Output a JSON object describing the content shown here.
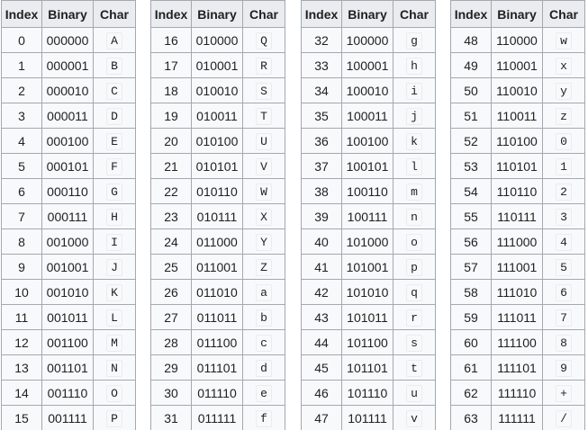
{
  "tables": [
    {
      "header": [
        "Index",
        "Binary",
        "Char"
      ],
      "rows": [
        [
          0,
          "000000",
          "A"
        ],
        [
          1,
          "000001",
          "B"
        ],
        [
          2,
          "000010",
          "C"
        ],
        [
          3,
          "000011",
          "D"
        ],
        [
          4,
          "000100",
          "E"
        ],
        [
          5,
          "000101",
          "F"
        ],
        [
          6,
          "000110",
          "G"
        ],
        [
          7,
          "000111",
          "H"
        ],
        [
          8,
          "001000",
          "I"
        ],
        [
          9,
          "001001",
          "J"
        ],
        [
          10,
          "001010",
          "K"
        ],
        [
          11,
          "001011",
          "L"
        ],
        [
          12,
          "001100",
          "M"
        ],
        [
          13,
          "001101",
          "N"
        ],
        [
          14,
          "001110",
          "O"
        ],
        [
          15,
          "001111",
          "P"
        ]
      ]
    },
    {
      "header": [
        "Index",
        "Binary",
        "Char"
      ],
      "rows": [
        [
          16,
          "010000",
          "Q"
        ],
        [
          17,
          "010001",
          "R"
        ],
        [
          18,
          "010010",
          "S"
        ],
        [
          19,
          "010011",
          "T"
        ],
        [
          20,
          "010100",
          "U"
        ],
        [
          21,
          "010101",
          "V"
        ],
        [
          22,
          "010110",
          "W"
        ],
        [
          23,
          "010111",
          "X"
        ],
        [
          24,
          "011000",
          "Y"
        ],
        [
          25,
          "011001",
          "Z"
        ],
        [
          26,
          "011010",
          "a"
        ],
        [
          27,
          "011011",
          "b"
        ],
        [
          28,
          "011100",
          "c"
        ],
        [
          29,
          "011101",
          "d"
        ],
        [
          30,
          "011110",
          "e"
        ],
        [
          31,
          "011111",
          "f"
        ]
      ]
    },
    {
      "header": [
        "Index",
        "Binary",
        "Char"
      ],
      "rows": [
        [
          32,
          "100000",
          "g"
        ],
        [
          33,
          "100001",
          "h"
        ],
        [
          34,
          "100010",
          "i"
        ],
        [
          35,
          "100011",
          "j"
        ],
        [
          36,
          "100100",
          "k"
        ],
        [
          37,
          "100101",
          "l"
        ],
        [
          38,
          "100110",
          "m"
        ],
        [
          39,
          "100111",
          "n"
        ],
        [
          40,
          "101000",
          "o"
        ],
        [
          41,
          "101001",
          "p"
        ],
        [
          42,
          "101010",
          "q"
        ],
        [
          43,
          "101011",
          "r"
        ],
        [
          44,
          "101100",
          "s"
        ],
        [
          45,
          "101101",
          "t"
        ],
        [
          46,
          "101110",
          "u"
        ],
        [
          47,
          "101111",
          "v"
        ]
      ]
    },
    {
      "header": [
        "Index",
        "Binary",
        "Char"
      ],
      "rows": [
        [
          48,
          "110000",
          "w"
        ],
        [
          49,
          "110001",
          "x"
        ],
        [
          50,
          "110010",
          "y"
        ],
        [
          51,
          "110011",
          "z"
        ],
        [
          52,
          "110100",
          "0"
        ],
        [
          53,
          "110101",
          "1"
        ],
        [
          54,
          "110110",
          "2"
        ],
        [
          55,
          "110111",
          "3"
        ],
        [
          56,
          "111000",
          "4"
        ],
        [
          57,
          "111001",
          "5"
        ],
        [
          58,
          "111010",
          "6"
        ],
        [
          59,
          "111011",
          "7"
        ],
        [
          60,
          "111100",
          "8"
        ],
        [
          61,
          "111101",
          "9"
        ],
        [
          62,
          "111110",
          "+"
        ],
        [
          63,
          "111111",
          "/"
        ]
      ]
    }
  ]
}
